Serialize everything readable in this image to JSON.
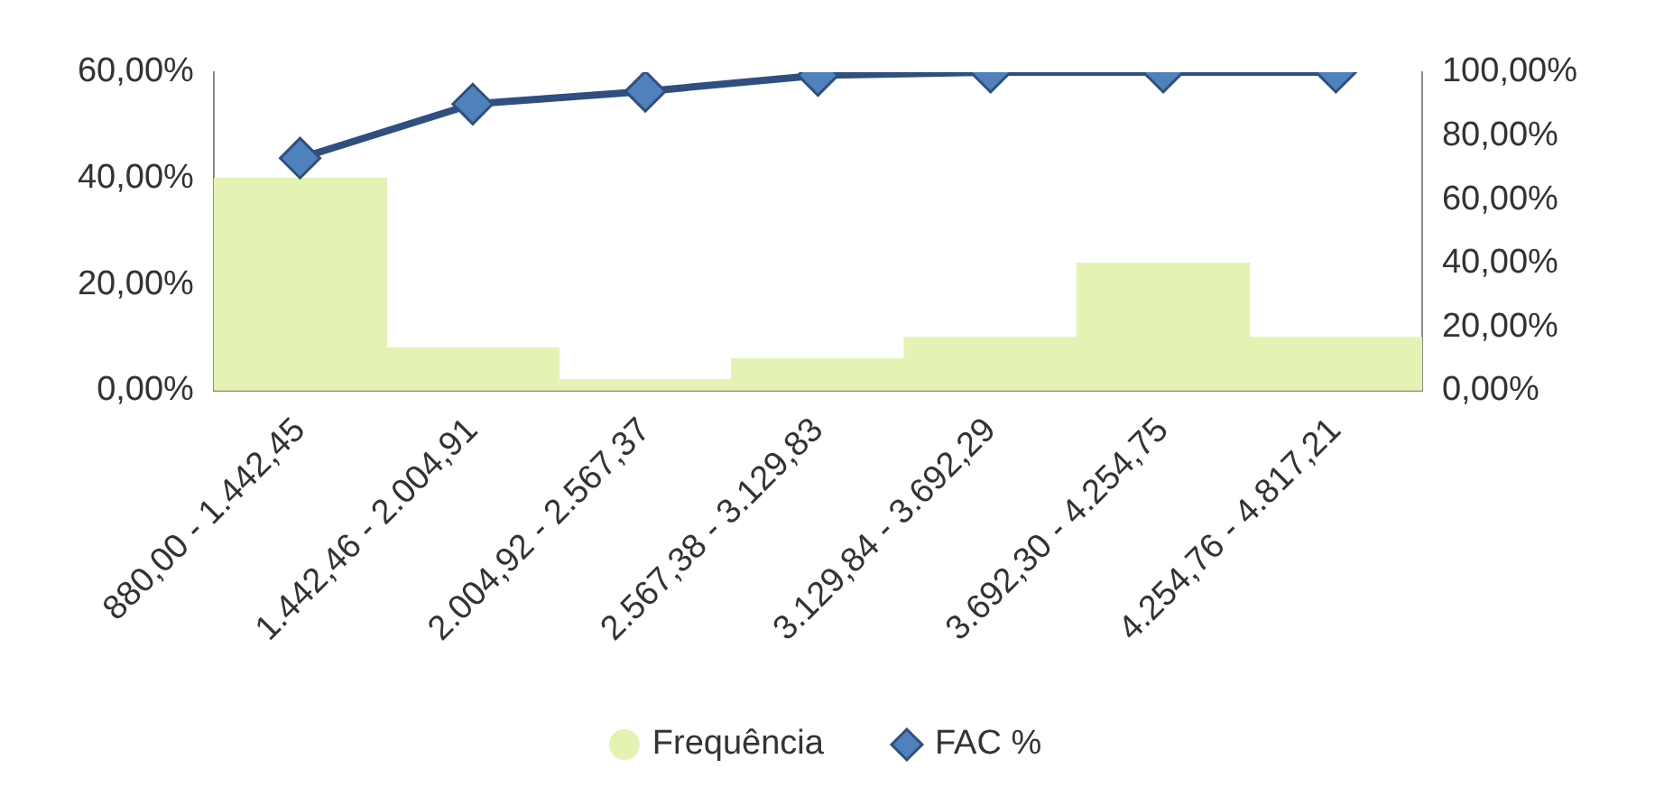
{
  "chart_data": {
    "type": "bar",
    "categories": [
      "880,00 - 1.442,45",
      "1.442,46 - 2.004,91",
      "2.004,92 - 2.567,37",
      "2.567,38 - 3.129,83",
      "3.129,84 - 3.692,29",
      "3.692,30 - 4.254,75",
      "4.254,76 - 4.817,21"
    ],
    "series": [
      {
        "name": "Frequência",
        "color": "#e4f3b4",
        "values": [
          40,
          8,
          2,
          6,
          10,
          24,
          10
        ]
      },
      {
        "name": "FAC %",
        "type": "line",
        "axis": "y2",
        "color": "#2f4f7f",
        "values": [
          73,
          90,
          94,
          99,
          100,
          100,
          100
        ]
      }
    ],
    "ylim": [
      0,
      60
    ],
    "yticks": [
      {
        "value": 0,
        "label": "0,00%"
      },
      {
        "value": 20,
        "label": "20,00%"
      },
      {
        "value": 40,
        "label": "40,00%"
      },
      {
        "value": 60,
        "label": "60,00%"
      }
    ],
    "y2lim": [
      0,
      100
    ],
    "y2ticks": [
      {
        "value": 0,
        "label": "0,00%"
      },
      {
        "value": 20,
        "label": "20,00%"
      },
      {
        "value": 40,
        "label": "40,00%"
      },
      {
        "value": 60,
        "label": "60,00%"
      },
      {
        "value": 80,
        "label": "80,00%"
      },
      {
        "value": 100,
        "label": "100,00%"
      }
    ],
    "grid": false,
    "legend": "bottom",
    "marker": "diamond",
    "line_style": "solid"
  }
}
